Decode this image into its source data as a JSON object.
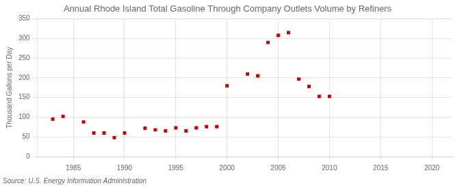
{
  "chart_data": {
    "type": "scatter",
    "title": "Annual Rhode Island Total Gasoline Through Company Outlets Volume by Refiners",
    "ylabel": "Thousand Gallons per Day",
    "annotations": [
      "Source: U.S. Energy Information Administration"
    ],
    "x": [
      1983,
      1984,
      1986,
      1987,
      1988,
      1989,
      1990,
      1992,
      1993,
      1994,
      1995,
      1996,
      1997,
      1998,
      1999,
      2000,
      2002,
      2003,
      2004,
      2005,
      2006,
      2007,
      2008,
      2009,
      2010
    ],
    "values": [
      95,
      102,
      88,
      60,
      60,
      48,
      60,
      72,
      68,
      65,
      73,
      65,
      73,
      76,
      76,
      180,
      210,
      205,
      290,
      308,
      315,
      197,
      178,
      153,
      153
    ],
    "color": "#cc0000",
    "marker": "square",
    "xlim": [
      1981.5,
      2022
    ],
    "ylim": [
      0,
      350
    ],
    "xticks": [
      1985,
      1990,
      1995,
      2000,
      2005,
      2010,
      2015,
      2020
    ],
    "yticks": [
      0,
      50,
      100,
      150,
      200,
      250,
      300,
      350
    ],
    "grid": true
  }
}
